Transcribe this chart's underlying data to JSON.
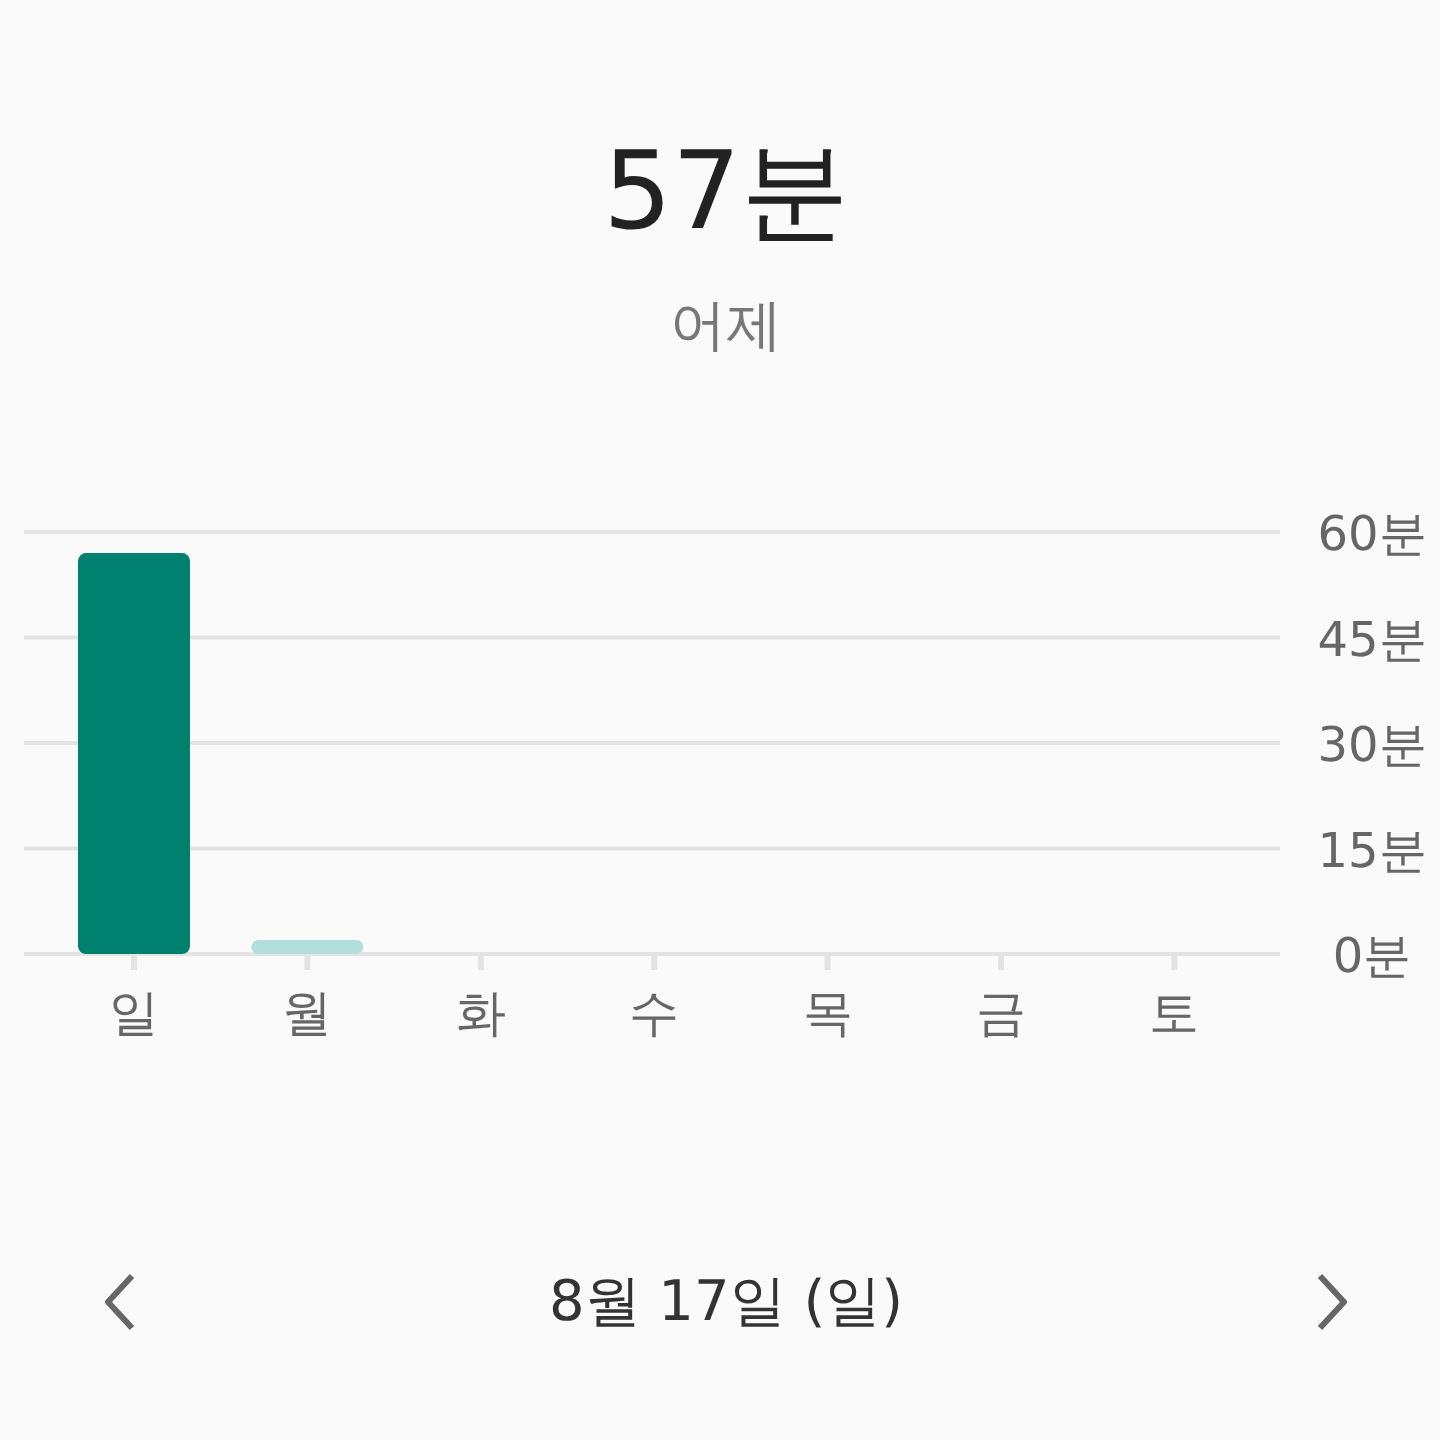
{
  "chart_data": {
    "type": "bar",
    "title": "57분",
    "subtitle": "어제",
    "categories": [
      "일",
      "월",
      "화",
      "수",
      "목",
      "금",
      "토"
    ],
    "values": [
      57,
      2,
      null,
      null,
      null,
      null,
      null
    ],
    "colors": [
      "#00806e",
      "#b2dfdb",
      null,
      null,
      null,
      null,
      null
    ],
    "ylim": [
      0,
      60
    ],
    "yticks": [
      {
        "value": 0,
        "label": "0분"
      },
      {
        "value": 15,
        "label": "15분"
      },
      {
        "value": 30,
        "label": "30분"
      },
      {
        "value": 45,
        "label": "45분"
      },
      {
        "value": 60,
        "label": "60분"
      }
    ],
    "grid": "y",
    "annotations": [
      "8월 17일 (일)"
    ]
  }
}
